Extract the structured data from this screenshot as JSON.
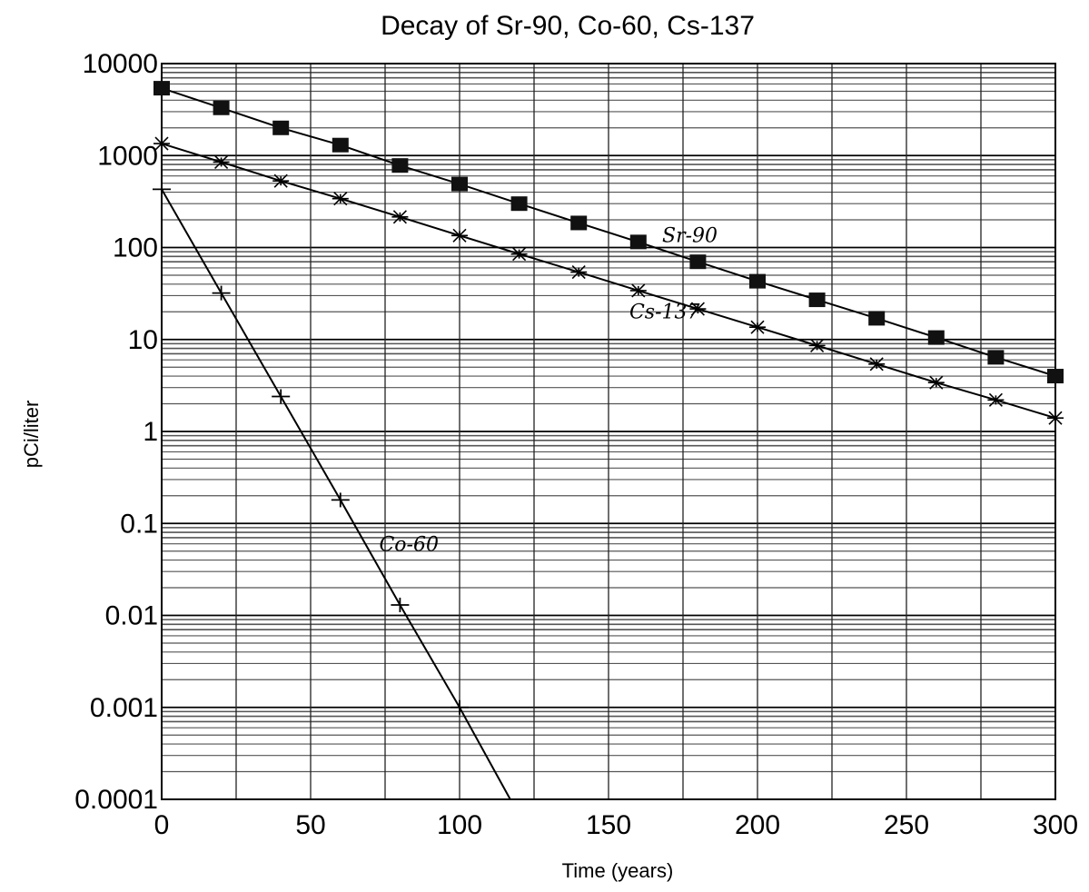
{
  "chart_data": {
    "type": "line",
    "title": "Decay of Sr-90, Co-60, Cs-137",
    "xlabel": "Time (years)",
    "ylabel": "pCi/liter",
    "xlim": [
      0,
      300
    ],
    "ylim": [
      0.0001,
      10000
    ],
    "yscale": "log",
    "grid": true,
    "x_ticks": [
      "0",
      "50",
      "100",
      "150",
      "200",
      "250",
      "300"
    ],
    "y_ticks": [
      "10000",
      "1000",
      "100",
      "10",
      "1",
      "0.1",
      "0.01",
      "0.001",
      "0.0001"
    ],
    "series": [
      {
        "name": "Sr-90",
        "marker": "filled-square",
        "x": [
          0,
          20,
          40,
          60,
          80,
          100,
          120,
          140,
          160,
          180,
          200,
          220,
          240,
          260,
          280,
          300
        ],
        "y": [
          5400,
          3300,
          2000,
          1300,
          780,
          490,
          300,
          185,
          115,
          70,
          43,
          27,
          17,
          10.5,
          6.4,
          4
        ]
      },
      {
        "name": "Cs-137",
        "marker": "asterisk",
        "x": [
          0,
          20,
          40,
          60,
          80,
          100,
          120,
          140,
          160,
          180,
          200,
          220,
          240,
          260,
          280,
          300
        ],
        "y": [
          1350,
          850,
          530,
          340,
          215,
          135,
          85,
          54,
          34,
          21.5,
          13.6,
          8.6,
          5.4,
          3.4,
          2.2,
          1.4
        ]
      },
      {
        "name": "Co-60",
        "marker": "plus",
        "x": [
          0,
          20,
          40,
          60,
          80,
          100,
          117
        ],
        "y": [
          430,
          32,
          2.4,
          0.18,
          0.013,
          0.001,
          0.0001
        ]
      }
    ],
    "annotations": [
      {
        "text": "Sr-90",
        "x": 168,
        "y": 115
      },
      {
        "text": "Cs-137",
        "x": 157,
        "y": 17
      },
      {
        "text": "Co-60",
        "x": 73,
        "y": 0.05
      }
    ]
  }
}
